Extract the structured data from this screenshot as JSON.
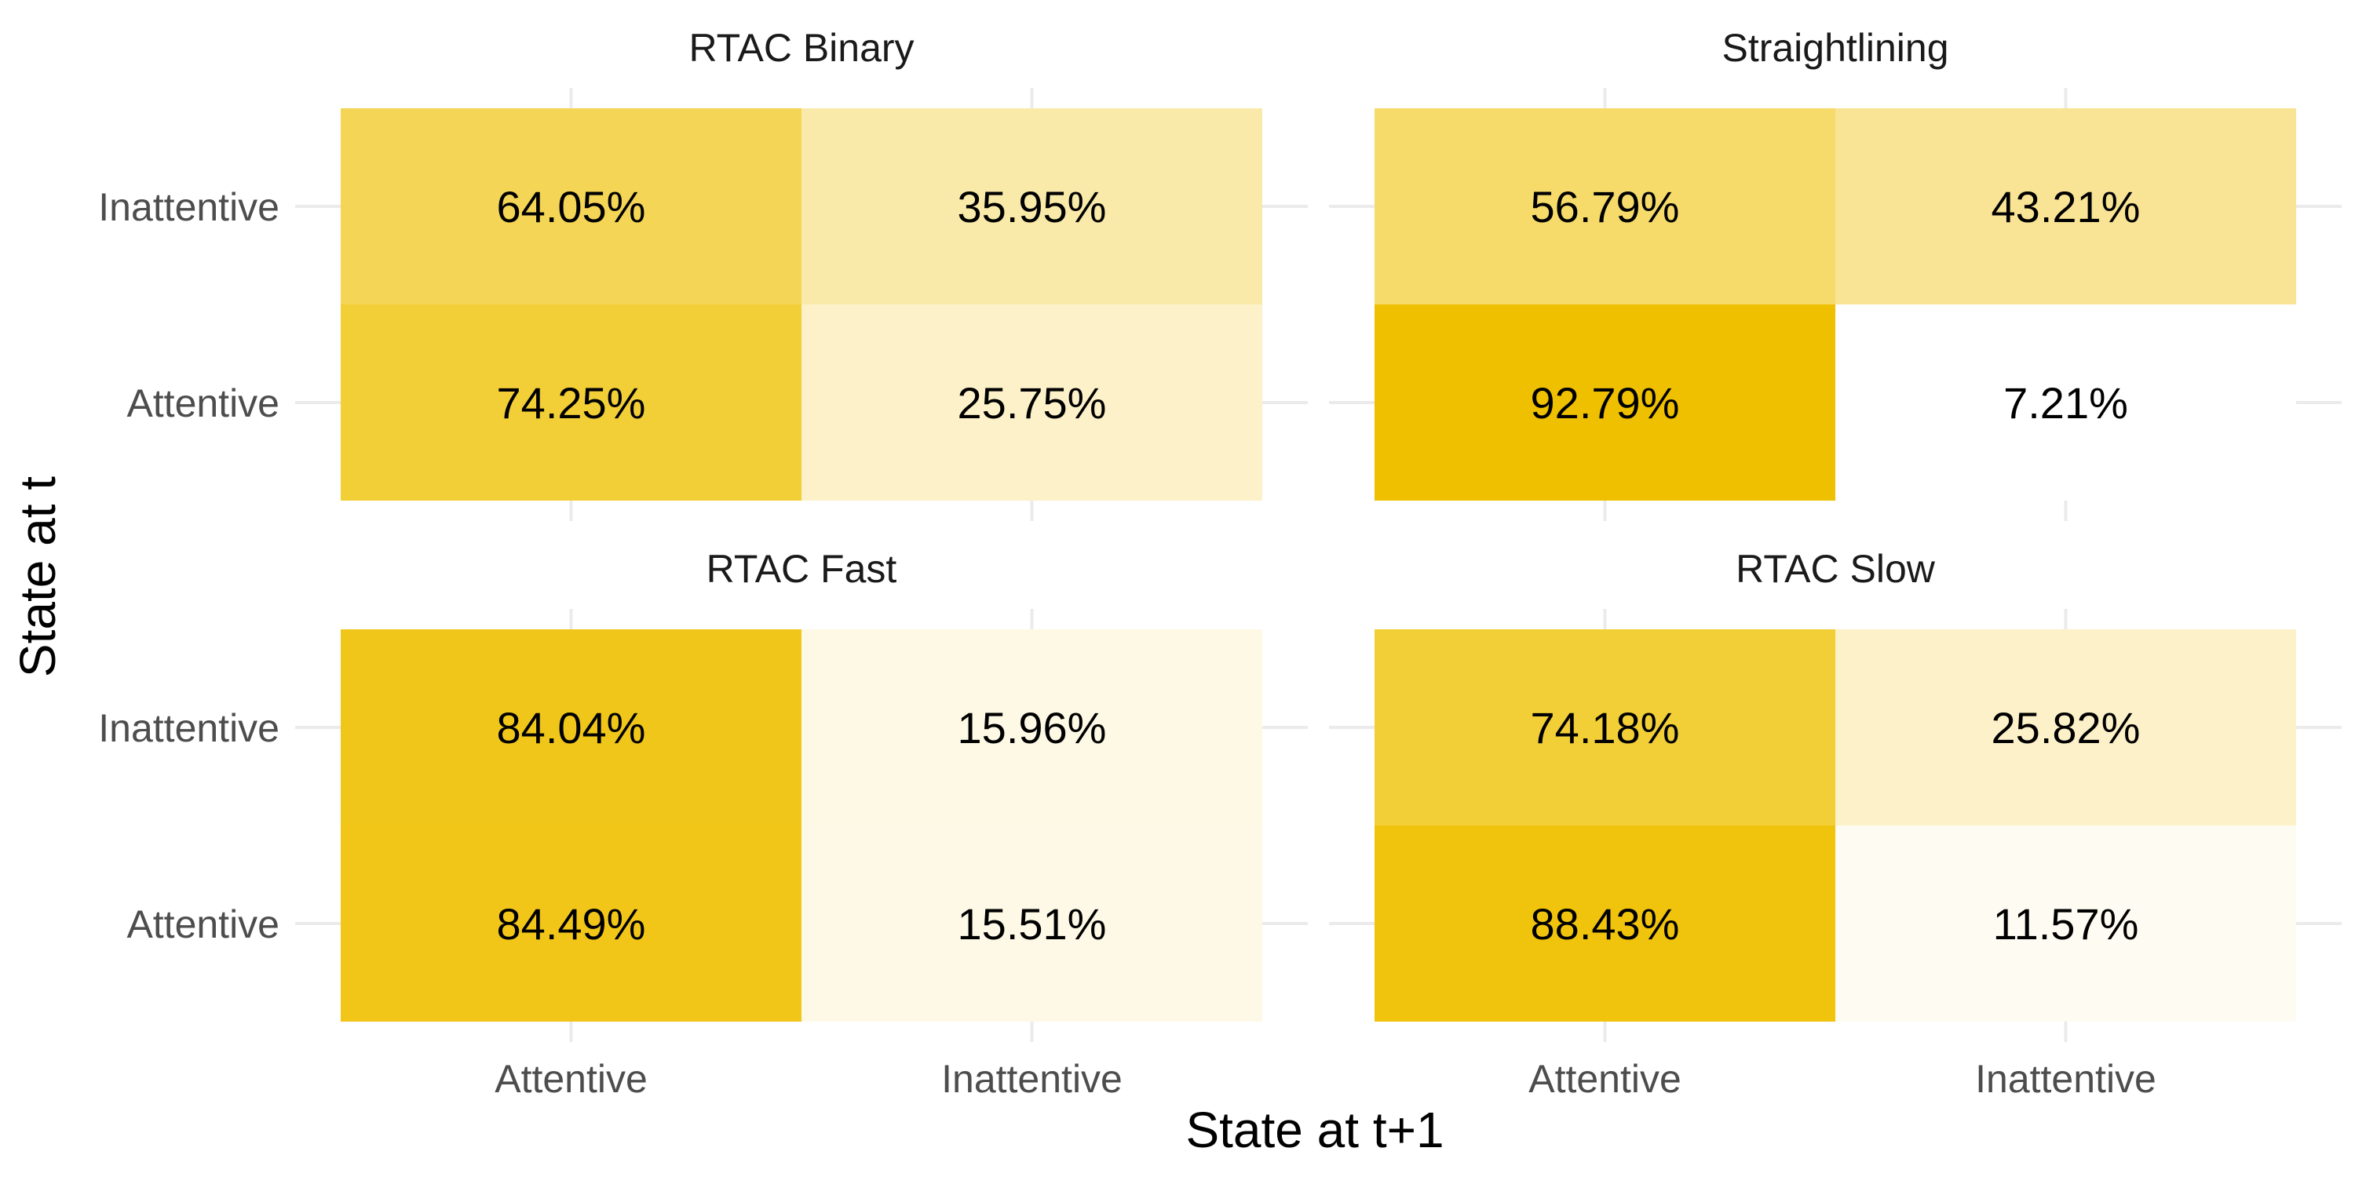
{
  "chart_data": {
    "type": "heatmap",
    "xlabel": "State at t+1",
    "ylabel": "State at t",
    "x_categories": [
      "Attentive",
      "Inattentive"
    ],
    "y_categories": [
      "Attentive",
      "Inattentive"
    ],
    "value_unit": "%",
    "fill_scale": {
      "low": "#ffffff",
      "high": "#efc000",
      "domain": [
        7.21,
        92.79
      ]
    },
    "panels": [
      {
        "title": "RTAC Binary",
        "cells": [
          {
            "from": "Inattentive",
            "to": "Attentive",
            "value": 64.05,
            "label": "64.05%"
          },
          {
            "from": "Inattentive",
            "to": "Inattentive",
            "value": 35.95,
            "label": "35.95%"
          },
          {
            "from": "Attentive",
            "to": "Attentive",
            "value": 74.25,
            "label": "74.25%"
          },
          {
            "from": "Attentive",
            "to": "Inattentive",
            "value": 25.75,
            "label": "25.75%"
          }
        ]
      },
      {
        "title": "Straightlining",
        "cells": [
          {
            "from": "Inattentive",
            "to": "Attentive",
            "value": 56.79,
            "label": "56.79%"
          },
          {
            "from": "Inattentive",
            "to": "Inattentive",
            "value": 43.21,
            "label": "43.21%"
          },
          {
            "from": "Attentive",
            "to": "Attentive",
            "value": 92.79,
            "label": "92.79%"
          },
          {
            "from": "Attentive",
            "to": "Inattentive",
            "value": 7.21,
            "label": "7.21%"
          }
        ]
      },
      {
        "title": "RTAC Fast",
        "cells": [
          {
            "from": "Inattentive",
            "to": "Attentive",
            "value": 84.04,
            "label": "84.04%"
          },
          {
            "from": "Inattentive",
            "to": "Inattentive",
            "value": 15.96,
            "label": "15.96%"
          },
          {
            "from": "Attentive",
            "to": "Attentive",
            "value": 84.49,
            "label": "84.49%"
          },
          {
            "from": "Attentive",
            "to": "Inattentive",
            "value": 15.51,
            "label": "15.51%"
          }
        ]
      },
      {
        "title": "RTAC Slow",
        "cells": [
          {
            "from": "Inattentive",
            "to": "Attentive",
            "value": 74.18,
            "label": "74.18%"
          },
          {
            "from": "Inattentive",
            "to": "Inattentive",
            "value": 25.82,
            "label": "25.82%"
          },
          {
            "from": "Attentive",
            "to": "Attentive",
            "value": 88.43,
            "label": "88.43%"
          },
          {
            "from": "Attentive",
            "to": "Inattentive",
            "value": 11.57,
            "label": "11.57%"
          }
        ]
      }
    ]
  }
}
